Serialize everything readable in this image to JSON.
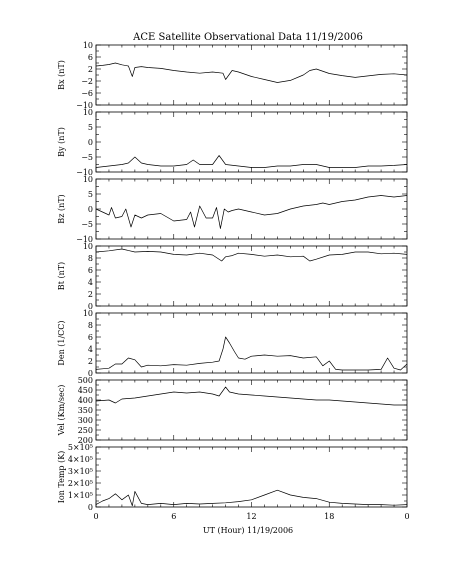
{
  "chart_data": {
    "type": "line",
    "title": "ACE Satellite Observational Data   11/19/2006",
    "xlabel": "UT (Hour)   11/19/2006",
    "x_ticks": [
      "0",
      "6",
      "12",
      "18",
      "0"
    ],
    "xlim": [
      0,
      24
    ],
    "panels": [
      {
        "name": "bx",
        "ylabel": "Bx (nT)",
        "ylim": [
          -10,
          10
        ],
        "yticks": [
          10,
          6,
          2,
          -2,
          -6,
          -10
        ],
        "ytick_labels": [
          "10",
          "6",
          "2",
          "−2",
          "−6",
          "−10"
        ],
        "series": {
          "x": [
            0,
            0.5,
            1,
            1.5,
            2,
            2.5,
            2.8,
            3,
            3.5,
            4,
            5,
            6,
            7,
            8,
            9,
            9.8,
            10,
            10.5,
            11,
            12,
            13,
            14,
            15,
            16,
            16.5,
            17,
            18,
            19,
            20,
            21,
            22,
            23,
            24
          ],
          "values": [
            3,
            3.2,
            3.5,
            4,
            3.4,
            3,
            -0.5,
            2.5,
            2.8,
            2.5,
            2.2,
            1.5,
            1,
            0.6,
            1,
            0.6,
            -1.5,
            1.5,
            1,
            -0.5,
            -1.5,
            -2.5,
            -1.8,
            0,
            1.5,
            2,
            0.5,
            -0.2,
            -0.8,
            -0.3,
            0.2,
            0.4,
            0
          ]
        }
      },
      {
        "name": "by",
        "ylabel": "By (nT)",
        "ylim": [
          -10,
          10
        ],
        "yticks": [
          10,
          5,
          0,
          -5,
          -10
        ],
        "ytick_labels": [
          "10",
          "5",
          "0",
          "−5",
          "−10"
        ],
        "series": {
          "x": [
            0,
            1,
            2,
            2.5,
            3,
            3.5,
            4,
            5,
            6,
            7,
            7.5,
            8,
            9,
            9.5,
            10,
            11,
            12,
            13,
            14,
            15,
            16,
            17,
            18,
            19,
            20,
            21,
            22,
            23,
            24
          ],
          "values": [
            -8.5,
            -8,
            -7.5,
            -7,
            -5,
            -7,
            -7.5,
            -8,
            -8,
            -7.5,
            -6,
            -7.5,
            -7.5,
            -4.5,
            -7.5,
            -8,
            -8.5,
            -8.5,
            -8,
            -8,
            -7.5,
            -7.5,
            -8.5,
            -8.5,
            -8.5,
            -8,
            -8,
            -7.8,
            -7.5
          ]
        }
      },
      {
        "name": "bz",
        "ylabel": "Bz (nT)",
        "ylim": [
          -10,
          10
        ],
        "yticks": [
          10,
          5,
          0,
          -5,
          -10
        ],
        "ytick_labels": [
          "10",
          "5",
          "0",
          "−5",
          "−10"
        ],
        "series": {
          "x": [
            0,
            0.5,
            1,
            1.2,
            1.5,
            2,
            2.3,
            2.7,
            3,
            3.5,
            4,
            5,
            6,
            7,
            7.3,
            7.6,
            8,
            8.5,
            9,
            9.3,
            9.6,
            9.9,
            10.2,
            10.5,
            11,
            12,
            13,
            14,
            15,
            16,
            17,
            17.5,
            18,
            19,
            20,
            21,
            22,
            23,
            24
          ],
          "values": [
            0,
            -1,
            -2,
            0.5,
            -3,
            -2.5,
            0,
            -6,
            -2,
            -3,
            -2,
            -1.5,
            -4,
            -3.5,
            -1,
            -6,
            1,
            -3,
            -3,
            0.5,
            -6.5,
            0,
            -1,
            -0.5,
            0,
            -1,
            -2,
            -1.5,
            0,
            1,
            1.5,
            2,
            1.5,
            2.5,
            3,
            4,
            4.5,
            4,
            4.5
          ]
        }
      },
      {
        "name": "bt",
        "ylabel": "Bt (nT)",
        "ylim": [
          0,
          10
        ],
        "yticks": [
          10,
          8,
          6,
          4,
          2,
          0
        ],
        "ytick_labels": [
          "10",
          "8",
          "6",
          "4",
          "2",
          "0"
        ],
        "series": {
          "x": [
            0,
            1,
            2,
            3,
            4,
            5,
            6,
            7,
            8,
            9,
            9.7,
            10,
            10.5,
            11,
            12,
            13,
            14,
            15,
            16,
            16.5,
            17,
            18,
            19,
            20,
            21,
            22,
            23,
            24
          ],
          "values": [
            9,
            9.2,
            9.5,
            9,
            9.1,
            9,
            8.6,
            8.5,
            8.8,
            8.5,
            7.5,
            8.2,
            8.4,
            8.8,
            8.6,
            8.3,
            8.5,
            8.2,
            8.3,
            7.5,
            7.8,
            8.5,
            8.6,
            9,
            9,
            8.7,
            8.8,
            8.6
          ]
        }
      },
      {
        "name": "den",
        "ylabel": "Den (1/CC)",
        "ylim": [
          0,
          10
        ],
        "yticks": [
          10,
          8,
          6,
          4,
          2,
          0
        ],
        "ytick_labels": [
          "10",
          "8",
          "6",
          "4",
          "2",
          "0"
        ],
        "series": {
          "x": [
            0,
            0.5,
            1,
            1.5,
            2,
            2.5,
            3,
            3.5,
            4,
            5,
            6,
            7,
            8,
            9,
            9.5,
            9.8,
            10,
            10.3,
            10.7,
            11,
            11.5,
            12,
            13,
            14,
            15,
            16,
            17,
            17.5,
            18,
            18.5,
            19,
            20,
            21,
            22,
            22.5,
            23,
            23.5,
            24
          ],
          "values": [
            0.6,
            0.7,
            0.8,
            1.5,
            1.5,
            2.5,
            2.2,
            1,
            1.3,
            1.2,
            1.4,
            1.3,
            1.6,
            1.8,
            2,
            4,
            6,
            5,
            3.5,
            2.5,
            2.3,
            2.8,
            3,
            2.8,
            2.9,
            2.5,
            2.7,
            1.2,
            2,
            0.6,
            0.5,
            0.5,
            0.5,
            0.6,
            2.5,
            0.8,
            0.5,
            1.5
          ]
        }
      },
      {
        "name": "vel",
        "ylabel": "Vel (Km/sec)",
        "ylim": [
          200,
          500
        ],
        "yticks": [
          500,
          450,
          400,
          350,
          300,
          250,
          200
        ],
        "ytick_labels": [
          "500",
          "450",
          "400",
          "350",
          "300",
          "250",
          "200"
        ],
        "series": {
          "x": [
            0,
            1,
            1.5,
            2,
            3,
            4,
            5,
            6,
            7,
            8,
            9,
            9.5,
            10,
            10.3,
            11,
            12,
            13,
            14,
            15,
            16,
            17,
            18,
            19,
            20,
            21,
            22,
            23,
            24
          ],
          "values": [
            395,
            400,
            385,
            405,
            410,
            420,
            430,
            440,
            435,
            440,
            430,
            420,
            465,
            440,
            430,
            425,
            420,
            415,
            410,
            405,
            400,
            400,
            395,
            390,
            385,
            380,
            375,
            375
          ]
        }
      },
      {
        "name": "temp",
        "ylabel": "Ion Temp (K)",
        "ylim": [
          0,
          500000
        ],
        "yticks": [
          500000,
          400000,
          300000,
          200000,
          100000,
          0
        ],
        "ytick_labels": [
          "5×10⁵",
          "4×10⁵",
          "3×10⁵",
          "2×10⁵",
          "1×10⁵",
          "0"
        ],
        "series": {
          "x": [
            0,
            0.5,
            1,
            1.5,
            2,
            2.5,
            2.8,
            3,
            3.5,
            4,
            5,
            6,
            7,
            8,
            9,
            10,
            11,
            12,
            13,
            14,
            15,
            16,
            17,
            18,
            19,
            20,
            21,
            22,
            23,
            24
          ],
          "values": [
            20000,
            50000,
            70000,
            110000,
            60000,
            100000,
            10000,
            130000,
            30000,
            20000,
            30000,
            20000,
            30000,
            25000,
            30000,
            35000,
            45000,
            60000,
            100000,
            140000,
            100000,
            80000,
            70000,
            40000,
            30000,
            25000,
            20000,
            20000,
            15000,
            20000
          ]
        }
      }
    ]
  }
}
